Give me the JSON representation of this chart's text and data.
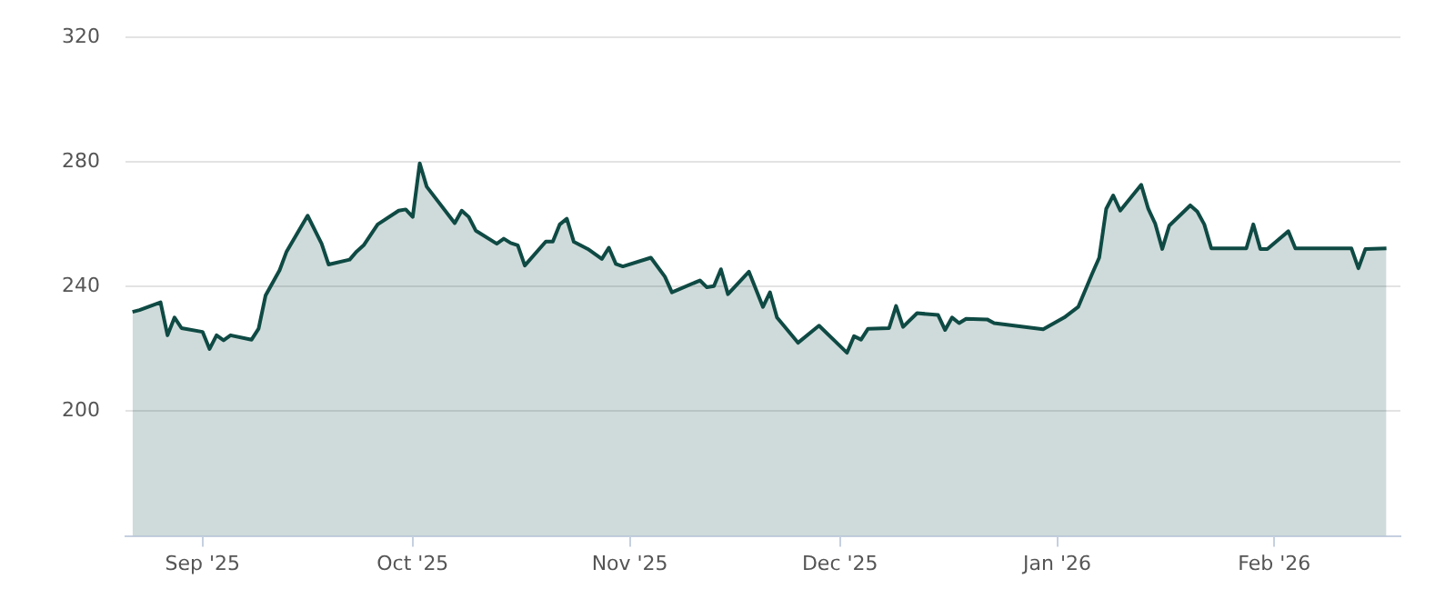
{
  "chart_data": {
    "type": "area",
    "x": [
      "2025-08-22",
      "2025-08-23",
      "2025-08-26",
      "2025-08-27",
      "2025-08-28",
      "2025-08-29",
      "2025-09-01",
      "2025-09-02",
      "2025-09-03",
      "2025-09-04",
      "2025-09-05",
      "2025-09-08",
      "2025-09-09",
      "2025-09-10",
      "2025-09-12",
      "2025-09-13",
      "2025-09-16",
      "2025-09-18",
      "2025-09-19",
      "2025-09-22",
      "2025-09-23",
      "2025-09-24",
      "2025-09-26",
      "2025-09-29",
      "2025-09-30",
      "2025-10-01",
      "2025-10-02",
      "2025-10-03",
      "2025-10-07",
      "2025-10-08",
      "2025-10-09",
      "2025-10-10",
      "2025-10-13",
      "2025-10-14",
      "2025-10-15",
      "2025-10-16",
      "2025-10-17",
      "2025-10-20",
      "2025-10-21",
      "2025-10-22",
      "2025-10-23",
      "2025-10-24",
      "2025-10-26",
      "2025-10-28",
      "2025-10-29",
      "2025-10-30",
      "2025-10-31",
      "2025-11-04",
      "2025-11-06",
      "2025-11-07",
      "2025-11-11",
      "2025-11-12",
      "2025-11-13",
      "2025-11-14",
      "2025-11-15",
      "2025-11-18",
      "2025-11-20",
      "2025-11-21",
      "2025-11-22",
      "2025-11-25",
      "2025-11-28",
      "2025-12-02",
      "2025-12-03",
      "2025-12-04",
      "2025-12-05",
      "2025-12-08",
      "2025-12-09",
      "2025-12-10",
      "2025-12-12",
      "2025-12-15",
      "2025-12-16",
      "2025-12-17",
      "2025-12-18",
      "2025-12-19",
      "2025-12-22",
      "2025-12-23",
      "2025-12-30",
      "2026-01-02",
      "2026-01-04",
      "2026-01-06",
      "2026-01-07",
      "2026-01-08",
      "2026-01-09",
      "2026-01-10",
      "2026-01-13",
      "2026-01-14",
      "2026-01-15",
      "2026-01-16",
      "2026-01-17",
      "2026-01-20",
      "2026-01-21",
      "2026-01-22",
      "2026-01-23",
      "2026-01-28",
      "2026-01-29",
      "2026-01-30",
      "2026-01-31",
      "2026-02-03",
      "2026-02-04",
      "2026-02-12",
      "2026-02-13",
      "2026-02-14",
      "2026-02-17"
    ],
    "series": [
      {
        "color": "#0f4a44",
        "values": [
          231.9,
          232.5,
          235,
          224.4,
          230.1,
          226.7,
          225.5,
          220,
          224.4,
          222.8,
          224.4,
          223,
          226.5,
          237.2,
          245.3,
          251.3,
          262.8,
          253.8,
          247.1,
          248.7,
          251.3,
          253.3,
          260,
          264.4,
          264.8,
          262.4,
          279.6,
          272.1,
          260.4,
          264.4,
          262.4,
          258,
          253.8,
          255.4,
          254,
          253.3,
          246.8,
          254.5,
          254.5,
          260,
          261.8,
          254.4,
          252.1,
          248.9,
          252.5,
          247.3,
          246.5,
          249.3,
          243.2,
          238.2,
          242,
          239.8,
          240.2,
          245.6,
          237.6,
          244.8,
          233.5,
          238.2,
          230.1,
          222,
          227.5,
          218.8,
          224.1,
          223,
          226.5,
          226.7,
          233.8,
          227.1,
          231.5,
          230.9,
          226.1,
          230.1,
          228.3,
          229.7,
          229.5,
          228.3,
          226.3,
          230.1,
          233.5,
          244.2,
          249.3,
          265,
          269.3,
          264.4,
          272.7,
          265,
          260.2,
          252.1,
          259.6,
          266.1,
          264.1,
          260,
          252.3,
          252.3,
          260,
          252.1,
          252.1,
          257.8,
          252.3,
          252.3,
          245.9,
          252.1,
          252.3
        ]
      }
    ],
    "xlim": [
      "2025-08-21",
      "2026-02-19"
    ],
    "xticks": [
      {
        "value": "2025-09-01",
        "label": "Sep '25"
      },
      {
        "value": "2025-10-01",
        "label": "Oct '25"
      },
      {
        "value": "2025-11-01",
        "label": "Nov '25"
      },
      {
        "value": "2025-12-01",
        "label": "Dec '25"
      },
      {
        "value": "2026-01-01",
        "label": "Jan '26"
      },
      {
        "value": "2026-02-01",
        "label": "Feb '26"
      }
    ],
    "ylim": [
      160,
      320
    ],
    "yticks": [
      200,
      240,
      280,
      320
    ],
    "grid": "y",
    "marker": "none"
  }
}
